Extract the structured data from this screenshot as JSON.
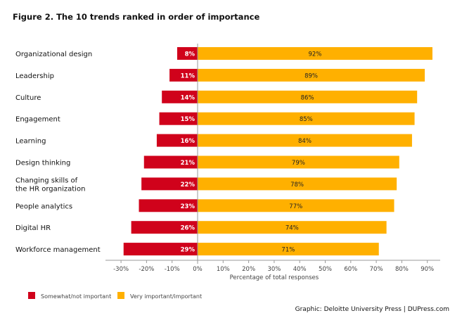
{
  "chart_data": {
    "type": "bar",
    "orientation": "horizontal-diverging",
    "title": "Figure 2. The 10 trends ranked in order of importance",
    "xlabel": "Percentage of total responses",
    "xlim": [
      -30,
      90
    ],
    "xticks": [
      "-30%",
      "-20%",
      "-10%",
      "0%",
      "10%",
      "20%",
      "30%",
      "40%",
      "50%",
      "60%",
      "70%",
      "80%",
      "90%"
    ],
    "categories": [
      "Organizational design",
      "Leadership",
      "Culture",
      "Engagement",
      "Learning",
      "Design thinking",
      "Changing skills of\nthe HR organization",
      "People analytics",
      "Digital HR",
      "Workforce management"
    ],
    "series": [
      {
        "name": "Somewhat/not important",
        "color": "#d0021b",
        "values": [
          8,
          11,
          14,
          15,
          16,
          21,
          22,
          23,
          26,
          29
        ]
      },
      {
        "name": "Very important/important",
        "color": "#ffb000",
        "values": [
          92,
          89,
          86,
          85,
          84,
          79,
          78,
          77,
          74,
          71
        ]
      }
    ],
    "grid": false,
    "legend": "bottom-left"
  },
  "credit": "Graphic: Deloitte University Press  |  DUPress.com"
}
